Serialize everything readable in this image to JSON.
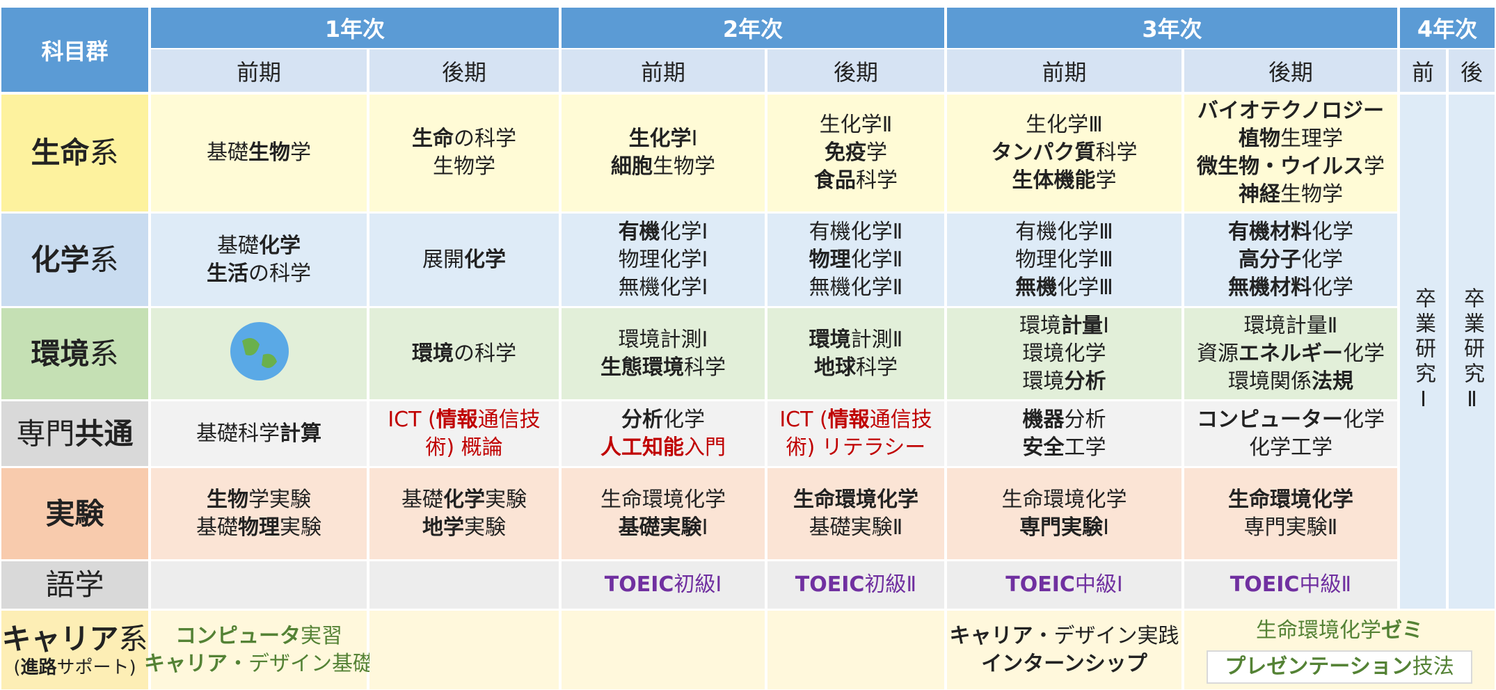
{
  "header": {
    "corner": "科目群",
    "years": [
      {
        "label": "1年次",
        "terms": [
          "前期",
          "後期"
        ]
      },
      {
        "label": "2年次",
        "terms": [
          "前期",
          "後期"
        ]
      },
      {
        "label": "3年次",
        "terms": [
          "前期",
          "後期"
        ]
      },
      {
        "label": "4年次",
        "terms": [
          "前",
          "後"
        ]
      }
    ]
  },
  "research": [
    "卒業研究Ⅰ",
    "卒業研究Ⅱ"
  ],
  "rows": [
    {
      "label": [
        [
          {
            "text": "生命",
            "bold": true
          },
          {
            "text": "系"
          }
        ]
      ],
      "cells": [
        [
          [
            {
              "text": "基礎"
            },
            {
              "text": "生物",
              "bold": true
            },
            {
              "text": "学"
            }
          ]
        ],
        [
          [
            {
              "text": "生命",
              "bold": true
            },
            {
              "text": "の科学"
            }
          ],
          [
            {
              "text": "生物学"
            }
          ]
        ],
        [
          [
            {
              "text": "生化学",
              "bold": true
            },
            {
              "text": "Ⅰ"
            }
          ],
          [
            {
              "text": "細胞",
              "bold": true
            },
            {
              "text": "生物学"
            }
          ]
        ],
        [
          [
            {
              "text": "生化学Ⅱ"
            }
          ],
          [
            {
              "text": "免疫",
              "bold": true
            },
            {
              "text": "学"
            }
          ],
          [
            {
              "text": "食品",
              "bold": true
            },
            {
              "text": "科学"
            }
          ]
        ],
        [
          [
            {
              "text": "生化学Ⅲ"
            }
          ],
          [
            {
              "text": "タンパク質",
              "bold": true
            },
            {
              "text": "科学"
            }
          ],
          [
            {
              "text": "生体機能",
              "bold": true
            },
            {
              "text": "学"
            }
          ]
        ],
        [
          [
            {
              "text": "バイオテクノロジー",
              "bold": true
            }
          ],
          [
            {
              "text": "植物",
              "bold": true
            },
            {
              "text": "生理学"
            }
          ],
          [
            {
              "text": "微生物・ウイルス",
              "bold": true
            },
            {
              "text": "学"
            }
          ],
          [
            {
              "text": "神経",
              "bold": true
            },
            {
              "text": "生物学"
            }
          ]
        ]
      ]
    },
    {
      "label": [
        [
          {
            "text": "化学",
            "bold": true
          },
          {
            "text": "系"
          }
        ]
      ],
      "cells": [
        [
          [
            {
              "text": "基礎"
            },
            {
              "text": "化学",
              "bold": true
            }
          ],
          [
            {
              "text": "生活",
              "bold": true
            },
            {
              "text": "の科学"
            }
          ]
        ],
        [
          [
            {
              "text": "展開"
            },
            {
              "text": "化学",
              "bold": true
            }
          ]
        ],
        [
          [
            {
              "text": "有機",
              "bold": true
            },
            {
              "text": "化学Ⅰ"
            }
          ],
          [
            {
              "text": "物理化学Ⅰ"
            }
          ],
          [
            {
              "text": "無機化学Ⅰ"
            }
          ]
        ],
        [
          [
            {
              "text": "有機化学Ⅱ"
            }
          ],
          [
            {
              "text": "物理",
              "bold": true
            },
            {
              "text": "化学Ⅱ"
            }
          ],
          [
            {
              "text": "無機化学Ⅱ"
            }
          ]
        ],
        [
          [
            {
              "text": "有機化学Ⅲ"
            }
          ],
          [
            {
              "text": "物理化学Ⅲ"
            }
          ],
          [
            {
              "text": "無機",
              "bold": true
            },
            {
              "text": "化学Ⅲ"
            }
          ]
        ],
        [
          [
            {
              "text": "有機材料",
              "bold": true
            },
            {
              "text": "化学"
            }
          ],
          [
            {
              "text": "高分子",
              "bold": true
            },
            {
              "text": "化学"
            }
          ],
          [
            {
              "text": "無機材料",
              "bold": true
            },
            {
              "text": "化学"
            }
          ]
        ]
      ]
    },
    {
      "label": [
        [
          {
            "text": "環境",
            "bold": true
          },
          {
            "text": "系"
          }
        ]
      ],
      "cells": [
        [],
        [
          [
            {
              "text": "環境",
              "bold": true
            },
            {
              "text": "の科学"
            }
          ]
        ],
        [
          [
            {
              "text": "環境計測Ⅰ"
            }
          ],
          [
            {
              "text": "生態環境",
              "bold": true
            },
            {
              "text": "科学"
            }
          ]
        ],
        [
          [
            {
              "text": "環境",
              "bold": true
            },
            {
              "text": "計測Ⅱ"
            }
          ],
          [
            {
              "text": "地球",
              "bold": true
            },
            {
              "text": "科学"
            }
          ]
        ],
        [
          [
            {
              "text": "環境"
            },
            {
              "text": "計量",
              "bold": true
            },
            {
              "text": "Ⅰ"
            }
          ],
          [
            {
              "text": "環境化学"
            }
          ],
          [
            {
              "text": "環境"
            },
            {
              "text": "分析",
              "bold": true
            }
          ]
        ],
        [
          [
            {
              "text": "環境計量Ⅱ"
            }
          ],
          [
            {
              "text": "資源"
            },
            {
              "text": "エネルギー",
              "bold": true
            },
            {
              "text": "化学"
            }
          ],
          [
            {
              "text": "環境関係"
            },
            {
              "text": "法規",
              "bold": true
            }
          ]
        ]
      ]
    },
    {
      "label": [
        [
          {
            "text": "専門"
          },
          {
            "text": "共通",
            "bold": true
          }
        ]
      ],
      "cells": [
        [
          [
            {
              "text": "基礎科学"
            },
            {
              "text": "計算",
              "bold": true
            }
          ]
        ],
        [
          [
            {
              "text": "ICT (",
              "color": "#c00000"
            },
            {
              "text": "情報",
              "bold": true,
              "color": "#c00000"
            },
            {
              "text": "通信技",
              "color": "#c00000"
            }
          ],
          [
            {
              "text": "術) 概論",
              "color": "#c00000"
            }
          ]
        ],
        [
          [
            {
              "text": "分析",
              "bold": true
            },
            {
              "text": "化学"
            }
          ],
          [
            {
              "text": "人工知能",
              "bold": true,
              "color": "#c00000"
            },
            {
              "text": "入門",
              "color": "#c00000"
            }
          ]
        ],
        [
          [
            {
              "text": "ICT (",
              "color": "#c00000"
            },
            {
              "text": "情報",
              "bold": true,
              "color": "#c00000"
            },
            {
              "text": "通信技",
              "color": "#c00000"
            }
          ],
          [
            {
              "text": "術) リテラシー",
              "color": "#c00000"
            }
          ]
        ],
        [
          [
            {
              "text": "機器",
              "bold": true
            },
            {
              "text": "分析"
            }
          ],
          [
            {
              "text": "安全",
              "bold": true
            },
            {
              "text": "工学"
            }
          ]
        ],
        [
          [
            {
              "text": "コンピューター",
              "bold": true
            },
            {
              "text": "化学"
            }
          ],
          [
            {
              "text": "化学工学"
            }
          ]
        ]
      ]
    },
    {
      "label": [
        [
          {
            "text": "実験",
            "bold": true
          }
        ]
      ],
      "cells": [
        [
          [
            {
              "text": "生物",
              "bold": true
            },
            {
              "text": "学実験"
            }
          ],
          [
            {
              "text": "基礎"
            },
            {
              "text": "物理",
              "bold": true
            },
            {
              "text": "実験"
            }
          ]
        ],
        [
          [
            {
              "text": "基礎"
            },
            {
              "text": "化学",
              "bold": true
            },
            {
              "text": "実験"
            }
          ],
          [
            {
              "text": "地学",
              "bold": true
            },
            {
              "text": "実験"
            }
          ]
        ],
        [
          [
            {
              "text": "生命環境化学"
            }
          ],
          [
            {
              "text": "基礎実験",
              "bold": true
            },
            {
              "text": "Ⅰ"
            }
          ]
        ],
        [
          [
            {
              "text": "生命環境化学",
              "bold": true
            }
          ],
          [
            {
              "text": "基礎実験Ⅱ"
            }
          ]
        ],
        [
          [
            {
              "text": "生命環境化学"
            }
          ],
          [
            {
              "text": "専門実験",
              "bold": true
            },
            {
              "text": "Ⅰ"
            }
          ]
        ],
        [
          [
            {
              "text": "生命環境化学",
              "bold": true
            }
          ],
          [
            {
              "text": "専門実験Ⅱ"
            }
          ]
        ]
      ]
    },
    {
      "label": [
        [
          {
            "text": "語学"
          }
        ]
      ],
      "cells": [
        [],
        [],
        [
          [
            {
              "text": "TOEIC",
              "bold": true,
              "color": "#7030a0"
            },
            {
              "text": "初級Ⅰ",
              "color": "#7030a0"
            }
          ]
        ],
        [
          [
            {
              "text": "TOEIC",
              "bold": true,
              "color": "#7030a0"
            },
            {
              "text": "初級Ⅱ",
              "color": "#7030a0"
            }
          ]
        ],
        [
          [
            {
              "text": "TOEIC",
              "bold": true,
              "color": "#7030a0"
            },
            {
              "text": "中級Ⅰ",
              "color": "#7030a0"
            }
          ]
        ],
        [
          [
            {
              "text": "TOEIC",
              "bold": true,
              "color": "#7030a0"
            },
            {
              "text": "中級Ⅱ",
              "color": "#7030a0"
            }
          ]
        ]
      ]
    },
    {
      "label": [
        [
          {
            "text": "キャリア",
            "bold": true
          },
          {
            "text": "系"
          }
        ],
        [
          {
            "text": "("
          },
          {
            "text": "進路",
            "bold": true
          },
          {
            "text": "サポート)"
          }
        ]
      ],
      "cells": [
        [
          [
            {
              "text": "コンピュータ",
              "bold": true,
              "color": "#548235"
            },
            {
              "text": "実習",
              "color": "#548235"
            }
          ],
          [
            {
              "text": "キャリア",
              "bold": true,
              "color": "#548235"
            },
            {
              "text": "・デザイン基礎",
              "color": "#548235"
            }
          ]
        ],
        [],
        [],
        [],
        [
          [
            {
              "text": "キャリア",
              "bold": true
            },
            {
              "text": "・デザイン実践"
            }
          ],
          [
            {
              "text": "インターンシップ",
              "bold": true
            }
          ]
        ],
        [
          [
            {
              "text": "生命環境化学",
              "color": "#548235"
            },
            {
              "text": "ゼミ",
              "bold": true,
              "color": "#548235"
            }
          ],
          [
            {
              "text": "プレゼンテーション",
              "bold": true,
              "color": "#548235"
            },
            {
              "text": "技法",
              "color": "#548235"
            }
          ]
        ]
      ]
    }
  ]
}
